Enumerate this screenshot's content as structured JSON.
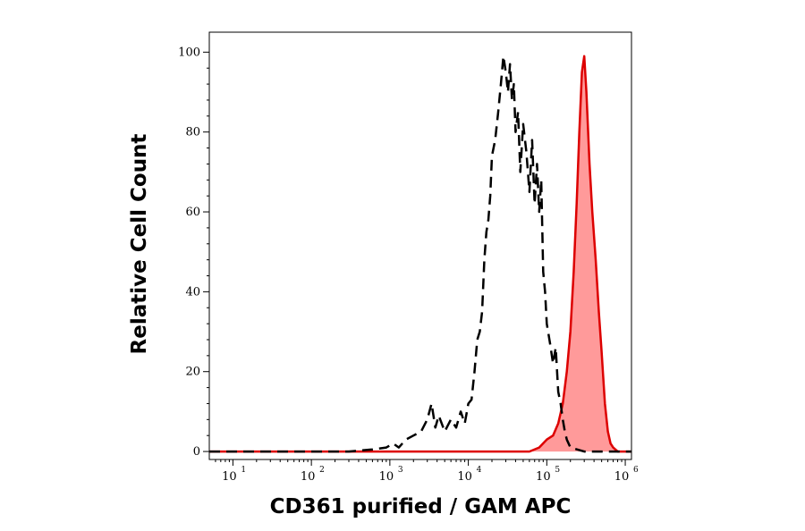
{
  "chart_data": {
    "type": "area",
    "title": "",
    "xlabel": "CD361 purified / GAM APC",
    "ylabel": "Relative Cell Count",
    "x_scale": "log",
    "xlim": [
      5,
      1200000
    ],
    "ylim": [
      -2,
      105
    ],
    "x_ticks": [
      {
        "base": "10",
        "exp": "1",
        "value": 10
      },
      {
        "base": "10",
        "exp": "2",
        "value": 100
      },
      {
        "base": "10",
        "exp": "3",
        "value": 1000
      },
      {
        "base": "10",
        "exp": "4",
        "value": 10000
      },
      {
        "base": "10",
        "exp": "5",
        "value": 100000
      },
      {
        "base": "10",
        "exp": "6",
        "value": 1000000
      }
    ],
    "y_ticks": [
      "0",
      "20",
      "40",
      "60",
      "80",
      "100"
    ],
    "y_tick_values": [
      0,
      20,
      40,
      60,
      80,
      100
    ],
    "grid": false,
    "colors": {
      "isotype": "#000000",
      "stained_line": "#dd0000",
      "stained_fill": "#ff9a9a"
    },
    "series": [
      {
        "style": "dashed",
        "x": [
          5,
          300,
          600,
          900,
          1100,
          1300,
          1600,
          2000,
          2500,
          3000,
          3400,
          3800,
          4200,
          5000,
          6000,
          7000,
          8000,
          9000,
          10000,
          11000,
          12000,
          13000,
          14000,
          15000,
          16000,
          17000,
          18000,
          19000,
          20000,
          22000,
          24000,
          26000,
          28000,
          30000,
          32000,
          34000,
          36000,
          38000,
          40000,
          43000,
          46000,
          50000,
          55000,
          60000,
          65000,
          70000,
          75000,
          80000,
          85000,
          90000,
          95000,
          100000,
          110000,
          120000,
          130000,
          140000,
          150000,
          160000,
          170000,
          180000,
          200000,
          300000,
          1200000
        ],
        "y": [
          0,
          0,
          0.5,
          1,
          2,
          1,
          3,
          4,
          5,
          8,
          12,
          6,
          9,
          5,
          8,
          6,
          10,
          7,
          12,
          13,
          20,
          28,
          30,
          35,
          48,
          55,
          58,
          64,
          74,
          78,
          85,
          92,
          99,
          95,
          90,
          97,
          88,
          92,
          80,
          85,
          70,
          82,
          75,
          65,
          78,
          62,
          72,
          60,
          68,
          45,
          40,
          32,
          27,
          22,
          26,
          15,
          12,
          8,
          5,
          3,
          1,
          0,
          0
        ]
      },
      {
        "style": "filled",
        "x": [
          5,
          60000,
          80000,
          100000,
          120000,
          140000,
          160000,
          180000,
          200000,
          220000,
          240000,
          260000,
          280000,
          300000,
          320000,
          350000,
          380000,
          420000,
          460000,
          500000,
          550000,
          600000,
          650000,
          700000,
          800000,
          1200000
        ],
        "y": [
          0,
          0,
          1,
          3,
          4,
          7,
          12,
          20,
          30,
          45,
          62,
          80,
          95,
          99,
          90,
          72,
          60,
          48,
          35,
          25,
          12,
          5,
          2,
          1,
          0,
          0
        ]
      }
    ]
  }
}
